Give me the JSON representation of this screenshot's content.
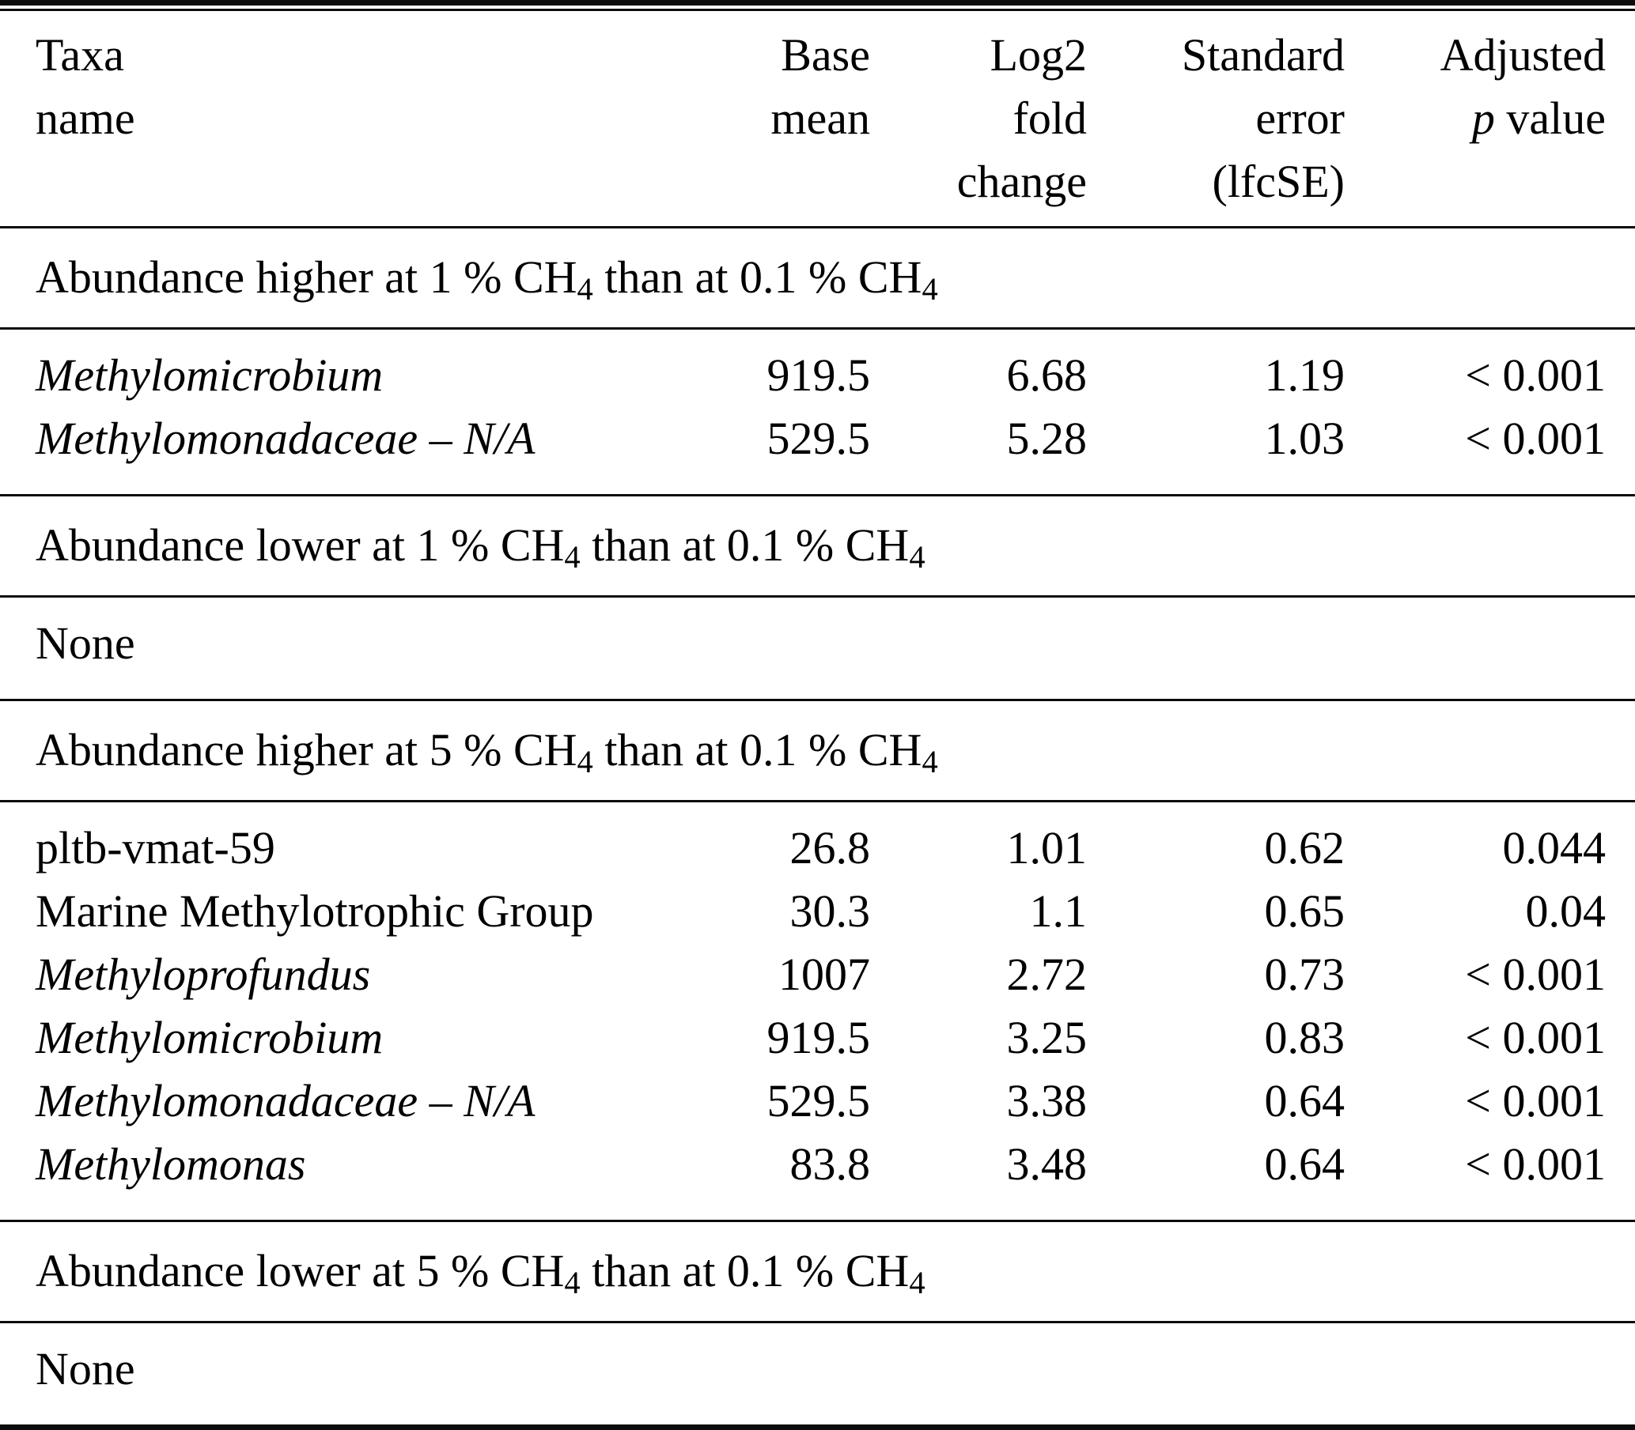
{
  "table": {
    "columns": [
      {
        "key": "taxa-name",
        "lines": [
          "Taxa",
          "name"
        ],
        "align": "left"
      },
      {
        "key": "base-mean",
        "lines": [
          "Base",
          "mean"
        ],
        "align": "right"
      },
      {
        "key": "log2-fold-change",
        "lines": [
          "Log2",
          "fold",
          "change"
        ],
        "align": "right"
      },
      {
        "key": "standard-error",
        "lines": [
          "Standard",
          "error",
          "(lfcSE)"
        ],
        "align": "right"
      },
      {
        "key": "adjusted-p-value",
        "lines": [
          "Adjusted",
          "p value"
        ],
        "align": "right",
        "italic_p": true
      }
    ],
    "sections": [
      {
        "label": "Abundance higher at 1 % CH4 than at 0.1 % CH4",
        "rows": [
          {
            "taxa": "Methylomicrobium",
            "italic": true,
            "base_mean": "919.5",
            "log2_fold_change": "6.68",
            "standard_error": "1.19",
            "adjusted_p": "< 0.001"
          },
          {
            "taxa": "Methylomonadaceae – N/A",
            "italic": true,
            "base_mean": "529.5",
            "log2_fold_change": "5.28",
            "standard_error": "1.03",
            "adjusted_p": "< 0.001"
          }
        ]
      },
      {
        "label": "Abundance lower at 1 % CH4 than at 0.1 % CH4",
        "rows": [],
        "empty_text": "None"
      },
      {
        "label": "Abundance higher at 5 % CH4 than at 0.1 % CH4",
        "rows": [
          {
            "taxa": "pltb-vmat-59",
            "italic": false,
            "base_mean": "26.8",
            "log2_fold_change": "1.01",
            "standard_error": "0.62",
            "adjusted_p": "0.044"
          },
          {
            "taxa": "Marine Methylotrophic Group",
            "italic": false,
            "base_mean": "30.3",
            "log2_fold_change": "1.1",
            "standard_error": "0.65",
            "adjusted_p": "0.04"
          },
          {
            "taxa": "Methyloprofundus",
            "italic": true,
            "base_mean": "1007",
            "log2_fold_change": "2.72",
            "standard_error": "0.73",
            "adjusted_p": "< 0.001"
          },
          {
            "taxa": "Methylomicrobium",
            "italic": true,
            "base_mean": "919.5",
            "log2_fold_change": "3.25",
            "standard_error": "0.83",
            "adjusted_p": "< 0.001"
          },
          {
            "taxa": "Methylomonadaceae – N/A",
            "italic": true,
            "base_mean": "529.5",
            "log2_fold_change": "3.38",
            "standard_error": "0.64",
            "adjusted_p": "< 0.001"
          },
          {
            "taxa": "Methylomonas",
            "italic": true,
            "base_mean": "83.8",
            "log2_fold_change": "3.48",
            "standard_error": "0.64",
            "adjusted_p": "< 0.001"
          }
        ]
      },
      {
        "label": "Abundance lower at 5 % CH4 than at 0.1 % CH4",
        "rows": [],
        "empty_text": "None"
      }
    ]
  }
}
